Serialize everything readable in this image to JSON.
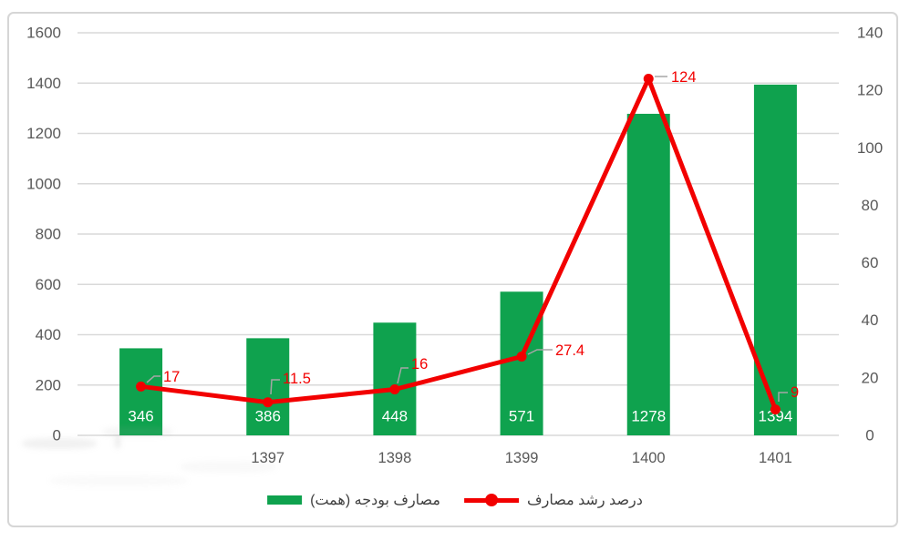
{
  "chart_data": {
    "type": "combo",
    "categories": [
      "",
      "1397",
      "1398",
      "1399",
      "1400",
      "1401"
    ],
    "series": [
      {
        "name": "مصارف بودجه (همت)",
        "type": "bar",
        "axis": "left",
        "values": [
          346,
          386,
          448,
          571,
          1278,
          1394
        ],
        "labels": [
          "346",
          "386",
          "448",
          "571",
          "1278",
          "1394"
        ]
      },
      {
        "name": "درصد رشد مصارف",
        "type": "line",
        "axis": "right",
        "values": [
          17,
          11.5,
          16,
          27.4,
          124,
          9
        ],
        "labels": [
          "17",
          "11.5",
          "16",
          "27.4",
          "124",
          "9"
        ]
      }
    ],
    "left_axis": {
      "min": 0,
      "max": 1600,
      "step": 200,
      "ticks": [
        "1600",
        "1400",
        "1200",
        "1000",
        "800",
        "600",
        "400",
        "200",
        "0"
      ]
    },
    "right_axis": {
      "min": 0,
      "max": 140,
      "step": 20,
      "ticks": [
        "140",
        "120",
        "100",
        "80",
        "60",
        "40",
        "20",
        "0"
      ]
    },
    "grid": true,
    "legend_position": "bottom",
    "title": ""
  },
  "colors": {
    "green": "#0fa24e",
    "red": "#f20000",
    "axis_text": "#595959",
    "gridline": "#d9d9d9",
    "border": "#d6d6d6",
    "leader": "#a6a6a6",
    "bar_label": "#ffffff",
    "legend_text": "#3f3f3f"
  }
}
